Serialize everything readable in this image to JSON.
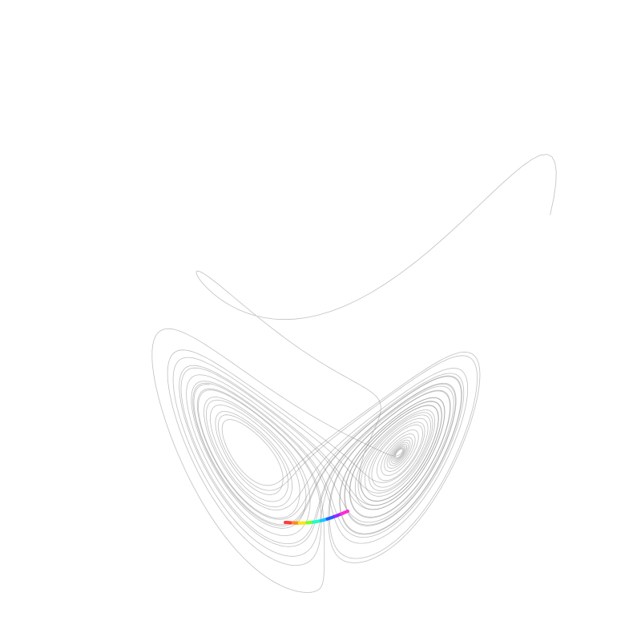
{
  "scene": {
    "subject": "lorenz-attractor-trajectory",
    "background_color": "#ffffff",
    "trajectory_color": "#8c8c8c",
    "highlight_colors": [
      "#ff3b3b",
      "#ff8a1e",
      "#ffe31a",
      "#7bff2a",
      "#19ffc8",
      "#19c8ff",
      "#2a5bff",
      "#9a2aff",
      "#ff2ad2"
    ]
  }
}
